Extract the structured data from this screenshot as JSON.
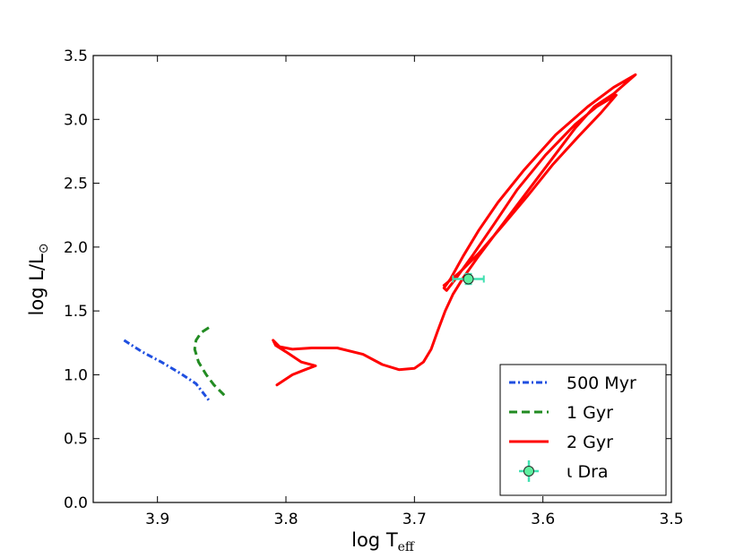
{
  "chart_data": {
    "type": "line",
    "xlabel": {
      "main": "log T",
      "sub": "eff"
    },
    "ylabel": {
      "main": "log L/L",
      "sub": "⊙"
    },
    "xlim": [
      3.95,
      3.5
    ],
    "ylim": [
      0.0,
      3.5
    ],
    "x_reversed": true,
    "grid": false,
    "legend_position": "lower-right",
    "xticks": [
      {
        "value": 3.9,
        "label": "3.9"
      },
      {
        "value": 3.8,
        "label": "3.8"
      },
      {
        "value": 3.7,
        "label": "3.7"
      },
      {
        "value": 3.6,
        "label": "3.6"
      },
      {
        "value": 3.5,
        "label": "3.5"
      }
    ],
    "yticks": [
      {
        "value": 0.0,
        "label": "0.0"
      },
      {
        "value": 0.5,
        "label": "0.5"
      },
      {
        "value": 1.0,
        "label": "1.0"
      },
      {
        "value": 1.5,
        "label": "1.5"
      },
      {
        "value": 2.0,
        "label": "2.0"
      },
      {
        "value": 2.5,
        "label": "2.5"
      },
      {
        "value": 3.0,
        "label": "3.0"
      },
      {
        "value": 3.5,
        "label": "3.5"
      }
    ],
    "series": [
      {
        "name": "500 Myr",
        "color": "#1f4fe0",
        "style": "dashdot",
        "points": [
          [
            3.926,
            1.27
          ],
          [
            3.912,
            1.18
          ],
          [
            3.897,
            1.1
          ],
          [
            3.882,
            1.01
          ],
          [
            3.87,
            0.93
          ],
          [
            3.86,
            0.8
          ]
        ]
      },
      {
        "name": "1 Gyr",
        "color": "#228b22",
        "style": "dashed",
        "points": [
          [
            3.86,
            1.37
          ],
          [
            3.866,
            1.33
          ],
          [
            3.87,
            1.27
          ],
          [
            3.871,
            1.2
          ],
          [
            3.868,
            1.1
          ],
          [
            3.862,
            1.0
          ],
          [
            3.856,
            0.92
          ],
          [
            3.848,
            0.84
          ]
        ]
      },
      {
        "name": "2 Gyr",
        "color": "#ff0000",
        "style": "solid",
        "points": [
          [
            3.807,
            0.92
          ],
          [
            3.795,
            1.0
          ],
          [
            3.785,
            1.04
          ],
          [
            3.777,
            1.07
          ],
          [
            3.788,
            1.1
          ],
          [
            3.8,
            1.18
          ],
          [
            3.808,
            1.23
          ],
          [
            3.81,
            1.27
          ],
          [
            3.805,
            1.22
          ],
          [
            3.795,
            1.2
          ],
          [
            3.78,
            1.21
          ],
          [
            3.76,
            1.21
          ],
          [
            3.74,
            1.16
          ],
          [
            3.725,
            1.08
          ],
          [
            3.712,
            1.04
          ],
          [
            3.7,
            1.05
          ],
          [
            3.693,
            1.1
          ],
          [
            3.687,
            1.2
          ],
          [
            3.682,
            1.34
          ],
          [
            3.676,
            1.5
          ],
          [
            3.67,
            1.63
          ],
          [
            3.662,
            1.76
          ],
          [
            3.65,
            1.93
          ],
          [
            3.635,
            2.13
          ],
          [
            3.62,
            2.33
          ],
          [
            3.605,
            2.53
          ],
          [
            3.59,
            2.73
          ],
          [
            3.575,
            2.93
          ],
          [
            3.56,
            3.1
          ],
          [
            3.545,
            3.2
          ],
          [
            3.528,
            3.35
          ],
          [
            3.545,
            3.25
          ],
          [
            3.565,
            3.1
          ],
          [
            3.59,
            2.88
          ],
          [
            3.615,
            2.6
          ],
          [
            3.635,
            2.35
          ],
          [
            3.65,
            2.13
          ],
          [
            3.662,
            1.93
          ],
          [
            3.672,
            1.75
          ],
          [
            3.677,
            1.68
          ],
          [
            3.675,
            1.66
          ],
          [
            3.668,
            1.75
          ],
          [
            3.655,
            1.93
          ],
          [
            3.638,
            2.18
          ],
          [
            3.62,
            2.45
          ],
          [
            3.598,
            2.72
          ],
          [
            3.575,
            2.96
          ],
          [
            3.558,
            3.1
          ],
          [
            3.543,
            3.19
          ],
          [
            3.555,
            3.05
          ],
          [
            3.572,
            2.87
          ],
          [
            3.592,
            2.65
          ],
          [
            3.612,
            2.4
          ],
          [
            3.632,
            2.16
          ],
          [
            3.65,
            1.95
          ],
          [
            3.665,
            1.8
          ],
          [
            3.677,
            1.7
          ]
        ]
      }
    ],
    "errorbar_point": {
      "name": "ι Dra",
      "x": 3.658,
      "y": 1.75,
      "xerr": 0.012,
      "yerr": 0.04,
      "marker_color": "#5ef0a0",
      "error_color": "#40e0b0",
      "edge_color": "#2a2a2a"
    }
  }
}
